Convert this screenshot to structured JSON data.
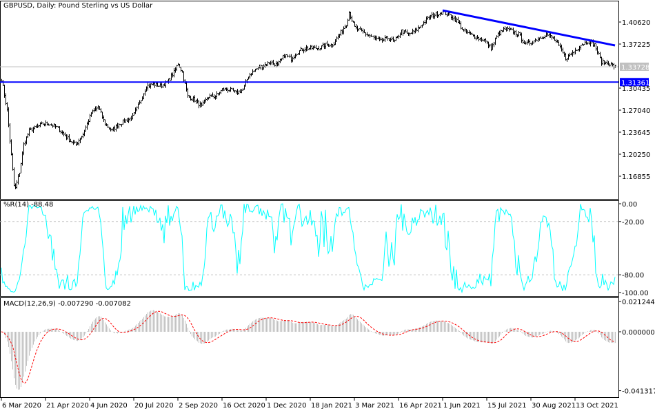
{
  "header": {
    "title": "GBPUSD, Daily:  Pound Sterling vs US Dollar"
  },
  "colors": {
    "bars": "#000000",
    "trendline": "#0000ff",
    "support": "#0000ff",
    "bid_line": "#c0c0c0",
    "wpr": "#00ffff",
    "macd_hist": "#c0c0c0",
    "macd_signal": "#ff0000"
  },
  "chart_data": [
    {
      "type": "ohlc",
      "title": "GBPUSD, Daily:  Pound Sterling vs US Dollar",
      "y_ticks": [
        "1.40620",
        "1.37225",
        "1.33728",
        "1.31361",
        "1.30435",
        "1.27040",
        "1.23645",
        "1.20250",
        "1.16855"
      ],
      "ylim": [
        1.142,
        1.4331
      ],
      "current_price": "1.33728",
      "support_level": "1.31361",
      "trendline": {
        "from": [
          320,
          1.4242
        ],
        "to": [
          445,
          1.3701
        ]
      },
      "close_waypoints": [
        [
          0,
          1.3181
        ],
        [
          4,
          1.2704
        ],
        [
          9,
          1.1537
        ],
        [
          10,
          1.15
        ],
        [
          13,
          1.1749
        ],
        [
          16,
          1.2173
        ],
        [
          20,
          1.2386
        ],
        [
          25,
          1.2439
        ],
        [
          30,
          1.2492
        ],
        [
          35,
          1.2492
        ],
        [
          40,
          1.2439
        ],
        [
          45,
          1.2333
        ],
        [
          50,
          1.2226
        ],
        [
          54,
          1.2173
        ],
        [
          59,
          1.2333
        ],
        [
          65,
          1.2651
        ],
        [
          70,
          1.2757
        ],
        [
          75,
          1.2492
        ],
        [
          80,
          1.2386
        ],
        [
          85,
          1.2492
        ],
        [
          90,
          1.2545
        ],
        [
          95,
          1.2598
        ],
        [
          100,
          1.281
        ],
        [
          105,
          1.3075
        ],
        [
          110,
          1.3107
        ],
        [
          115,
          1.3075
        ],
        [
          120,
          1.3128
        ],
        [
          125,
          1.3287
        ],
        [
          128,
          1.3425
        ],
        [
          131,
          1.3287
        ],
        [
          135,
          1.2916
        ],
        [
          140,
          1.2863
        ],
        [
          145,
          1.2757
        ],
        [
          150,
          1.2916
        ],
        [
          155,
          1.2916
        ],
        [
          160,
          1.3022
        ],
        [
          165,
          1.3022
        ],
        [
          170,
          1.2969
        ],
        [
          175,
          1.3022
        ],
        [
          179,
          1.3234
        ],
        [
          185,
          1.3341
        ],
        [
          190,
          1.3394
        ],
        [
          195,
          1.3447
        ],
        [
          200,
          1.3394
        ],
        [
          205,
          1.3553
        ],
        [
          210,
          1.35
        ],
        [
          215,
          1.3606
        ],
        [
          220,
          1.3659
        ],
        [
          225,
          1.3659
        ],
        [
          230,
          1.3659
        ],
        [
          235,
          1.3712
        ],
        [
          240,
          1.3712
        ],
        [
          245,
          1.3871
        ],
        [
          250,
          1.403
        ],
        [
          252,
          1.4211
        ],
        [
          256,
          1.3977
        ],
        [
          260,
          1.3924
        ],
        [
          265,
          1.3871
        ],
        [
          270,
          1.3818
        ],
        [
          275,
          1.3765
        ],
        [
          280,
          1.3818
        ],
        [
          285,
          1.3765
        ],
        [
          290,
          1.3924
        ],
        [
          295,
          1.3871
        ],
        [
          300,
          1.3924
        ],
        [
          305,
          1.403
        ],
        [
          310,
          1.4136
        ],
        [
          315,
          1.4189
        ],
        [
          320,
          1.4211
        ],
        [
          325,
          1.4168
        ],
        [
          330,
          1.4083
        ],
        [
          335,
          1.3924
        ],
        [
          340,
          1.3871
        ],
        [
          345,
          1.3818
        ],
        [
          350,
          1.3786
        ],
        [
          355,
          1.3659
        ],
        [
          360,
          1.3871
        ],
        [
          365,
          1.3956
        ],
        [
          370,
          1.3924
        ],
        [
          375,
          1.3871
        ],
        [
          380,
          1.3712
        ],
        [
          385,
          1.3765
        ],
        [
          390,
          1.3818
        ],
        [
          395,
          1.3871
        ],
        [
          400,
          1.3818
        ],
        [
          405,
          1.3659
        ],
        [
          409,
          1.35
        ],
        [
          415,
          1.3606
        ],
        [
          420,
          1.3712
        ],
        [
          425,
          1.3765
        ],
        [
          430,
          1.3712
        ],
        [
          435,
          1.3447
        ],
        [
          440,
          1.3425
        ],
        [
          445,
          1.3373
        ]
      ]
    },
    {
      "type": "line",
      "title": "%R(14) -88.48",
      "indicator": "Williams %R",
      "period": 14,
      "last_value": -88.48,
      "y_ticks": [
        "0.00",
        "-20.00",
        "-80.00",
        "-100.00"
      ],
      "levels": [
        -20,
        -80
      ],
      "ylim": [
        -100,
        0
      ]
    },
    {
      "type": "bar",
      "title": "MACD(12,26,9) -0.007290 -0.007082",
      "indicator": "MACD",
      "params": [
        12,
        26,
        9
      ],
      "last_main": -0.00729,
      "last_signal": -0.007082,
      "y_ticks": [
        "0.021244",
        "0.000000",
        "-0.041317"
      ],
      "ylim": [
        -0.041317,
        0.021244
      ]
    }
  ],
  "x_axis": {
    "labels": [
      "6 Mar 2020",
      "21 Apr 2020",
      "4 Jun 2020",
      "20 Jul 2020",
      "2 Sep 2020",
      "16 Oct 2020",
      "1 Dec 2020",
      "18 Jan 2021",
      "3 Mar 2021",
      "16 Apr 2021",
      "1 Jun 2021",
      "15 Jul 2021",
      "30 Aug 2021",
      "13 Oct 2021"
    ],
    "bar_index": [
      0,
      32,
      64,
      96,
      128,
      160,
      192,
      224,
      256,
      288,
      320,
      352,
      384,
      416
    ]
  }
}
